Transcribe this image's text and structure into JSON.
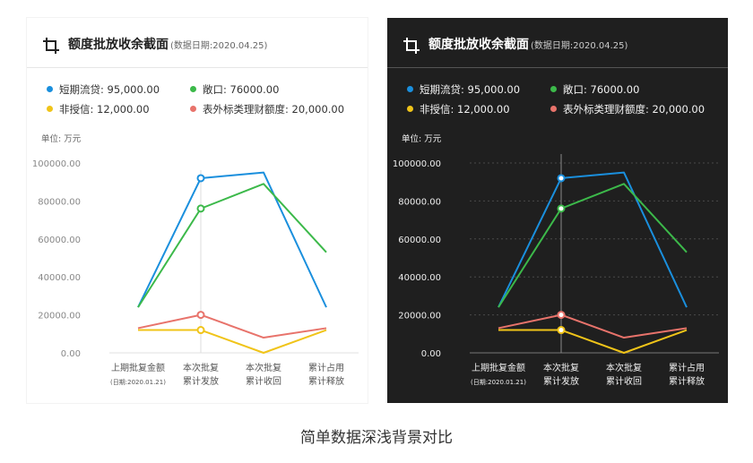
{
  "panel_title": "额度批放收余截面",
  "panel_date": "(数据日期:2020.04.25)",
  "unit_label": "单位: 万元",
  "legend": [
    {
      "label": "短期流贷: 95,000.00",
      "color": "#1a8fdd"
    },
    {
      "label": "敞口: 76000.00",
      "color": "#3cb94a"
    },
    {
      "label": "非授信: 12,000.00",
      "color": "#f0c419"
    },
    {
      "label": "表外标类理财额度: 20,000.00",
      "color": "#e8736b"
    }
  ],
  "caption": "简单数据深浅背景对比",
  "chart_data": {
    "type": "line",
    "title": "额度批放收余截面",
    "ylabel": "单位: 万元",
    "ylim": [
      0,
      100000
    ],
    "yticks": [
      "100000.00",
      "80000.00",
      "60000.00",
      "40000.00",
      "20000.00",
      "0.00"
    ],
    "categories": [
      [
        "上期批复金额",
        "(日期:2020.01.21)"
      ],
      [
        "本次批复",
        "累计发放"
      ],
      [
        "本次批复",
        "累计收回"
      ],
      [
        "累计占用",
        "累计释放"
      ]
    ],
    "highlight_index": 1,
    "series": [
      {
        "name": "短期流贷",
        "color": "#1a8fdd",
        "values": [
          24000,
          92000,
          95000,
          24000
        ]
      },
      {
        "name": "敞口",
        "color": "#3cb94a",
        "values": [
          24000,
          76000,
          89000,
          53000
        ]
      },
      {
        "name": "非授信",
        "color": "#f0c419",
        "values": [
          12000,
          12000,
          0,
          12000
        ]
      },
      {
        "name": "表外标类理财额度",
        "color": "#e8736b",
        "values": [
          13000,
          20000,
          8000,
          13000
        ]
      }
    ]
  }
}
